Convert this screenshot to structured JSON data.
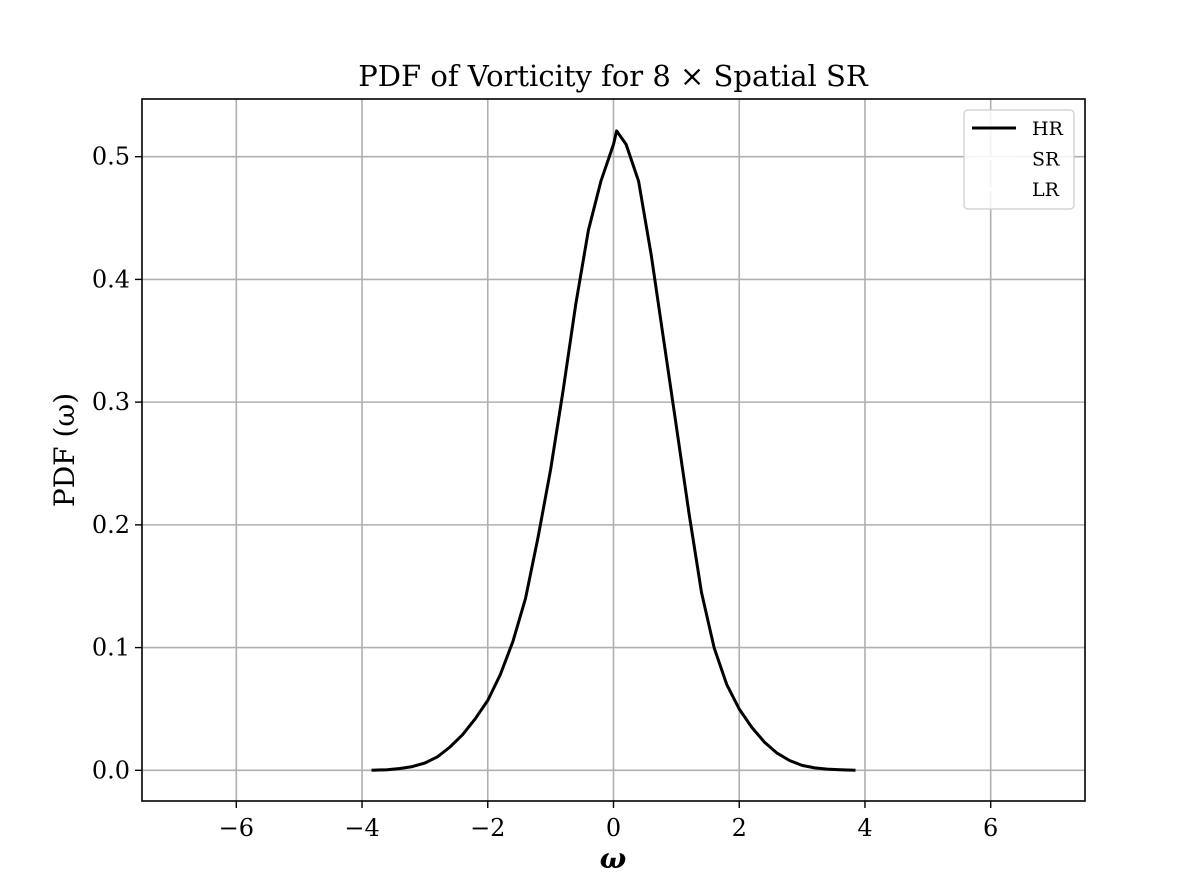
{
  "chart_data": {
    "type": "line",
    "title": "PDF of Vorticity for 8 × Spatial SR",
    "xlabel": "ω",
    "ylabel": "PDF (ω)",
    "xlim": [
      -7.5,
      7.5
    ],
    "ylim": [
      -0.025,
      0.547
    ],
    "grid": true,
    "legend_placement": "top-right",
    "x_ticks": [
      -6,
      -4,
      -2,
      0,
      2,
      4,
      6
    ],
    "x_tick_labels": [
      "−6",
      "−4",
      "−2",
      "0",
      "2",
      "4",
      "6"
    ],
    "y_ticks": [
      0.0,
      0.1,
      0.2,
      0.3,
      0.4,
      0.5
    ],
    "y_tick_labels": [
      "0.0",
      "0.1",
      "0.2",
      "0.3",
      "0.4",
      "0.5"
    ],
    "legend": [
      "HR",
      "SR",
      "LR"
    ],
    "series": [
      {
        "name": "HR",
        "color": "#000000",
        "x": [
          -3.85,
          -3.6,
          -3.4,
          -3.2,
          -3.0,
          -2.8,
          -2.6,
          -2.4,
          -2.2,
          -2.0,
          -1.8,
          -1.6,
          -1.4,
          -1.2,
          -1.0,
          -0.8,
          -0.6,
          -0.4,
          -0.2,
          0.0,
          0.05,
          0.2,
          0.4,
          0.6,
          0.8,
          1.0,
          1.2,
          1.4,
          1.6,
          1.8,
          2.0,
          2.2,
          2.4,
          2.6,
          2.8,
          3.0,
          3.2,
          3.4,
          3.6,
          3.85
        ],
        "y": [
          0.0,
          0.0005,
          0.0015,
          0.003,
          0.006,
          0.011,
          0.019,
          0.029,
          0.042,
          0.057,
          0.078,
          0.105,
          0.14,
          0.19,
          0.245,
          0.31,
          0.38,
          0.44,
          0.48,
          0.51,
          0.521,
          0.51,
          0.48,
          0.42,
          0.35,
          0.28,
          0.21,
          0.145,
          0.1,
          0.07,
          0.05,
          0.035,
          0.023,
          0.014,
          0.008,
          0.004,
          0.002,
          0.001,
          0.0005,
          0.0
        ]
      },
      {
        "name": "SR",
        "color": "#ffffff",
        "x": [],
        "y": []
      },
      {
        "name": "LR",
        "color": "#ffffff",
        "x": [],
        "y": []
      }
    ]
  }
}
